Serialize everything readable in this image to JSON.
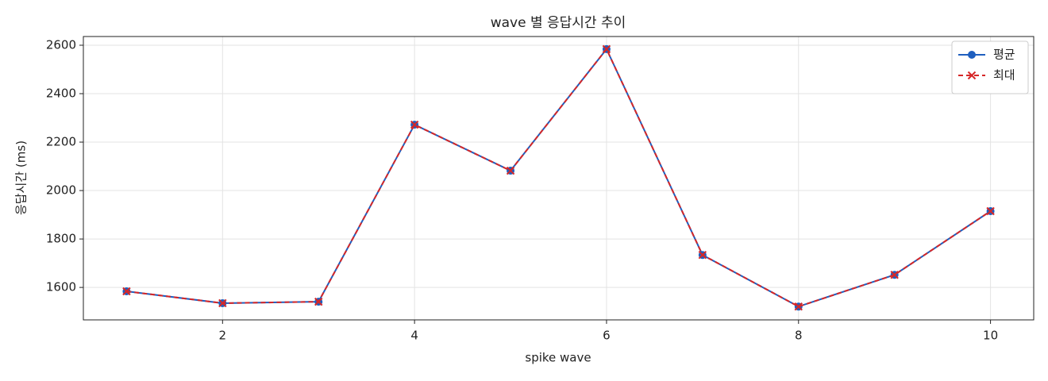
{
  "chart_data": {
    "type": "line",
    "title": "wave 별 응답시간 추이",
    "x_label": "spike wave",
    "y_label": "응답시간 (ms)",
    "x": [
      1,
      2,
      3,
      4,
      5,
      6,
      7,
      8,
      9,
      10
    ],
    "series": [
      {
        "name": "평균",
        "color": "#1f5fbf",
        "marker": "o",
        "dash": false,
        "values": [
          1584,
          1535,
          1541,
          2272,
          2082,
          2584,
          1734,
          1521,
          1652,
          1915
        ]
      },
      {
        "name": "최대",
        "color": "#d62728",
        "marker": "x",
        "dash": true,
        "values": [
          1584,
          1535,
          1541,
          2272,
          2082,
          2584,
          1734,
          1521,
          1652,
          1915
        ]
      }
    ],
    "xlim": [
      0.55,
      10.45
    ],
    "ylim": [
      1466,
      2636
    ],
    "xticks": [
      2,
      4,
      6,
      8,
      10
    ],
    "yticks": [
      1600,
      1800,
      2000,
      2200,
      2400,
      2600
    ],
    "grid": true,
    "legend": "upper right"
  }
}
